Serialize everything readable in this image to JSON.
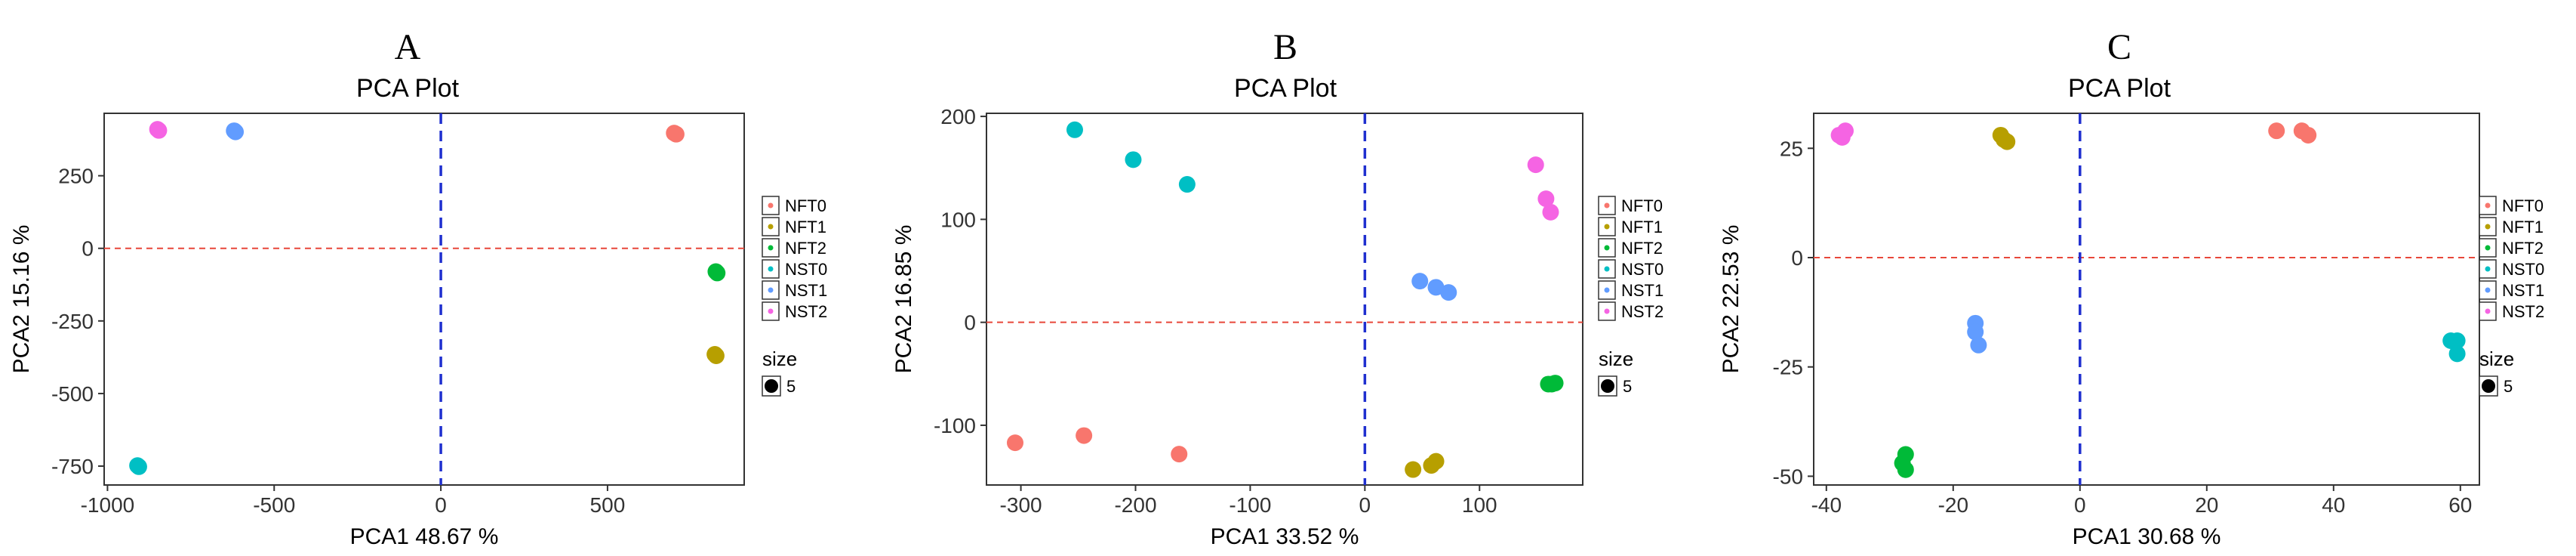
{
  "colors": {
    "NFT0": "#F8766D",
    "NFT1": "#B79F00",
    "NFT2": "#00BA38",
    "NST0": "#00BFC4",
    "NST1": "#619CFF",
    "NST2": "#F564E3",
    "hline": "#E8473A",
    "vline": "#1F2FCF"
  },
  "chart_data": [
    {
      "panel": "A",
      "type": "scatter",
      "title": "PCA Plot",
      "xlabel": "PCA1 48.67 %",
      "ylabel": "PCA2 15.16 %",
      "xlim": [
        -1010,
        910
      ],
      "ylim": [
        -815,
        465
      ],
      "xticks": [
        -1000,
        -500,
        0,
        500
      ],
      "xtick_labels": [
        "-1000",
        "-500",
        "0",
        "500"
      ],
      "yticks": [
        -750,
        -500,
        -250,
        0,
        250
      ],
      "ytick_labels": [
        "-750",
        "-500",
        "-250",
        "0",
        "250"
      ],
      "legend_labels": [
        "NFT0",
        "NFT1",
        "NFT2",
        "NST0",
        "NST1",
        "NST2"
      ],
      "size_title": "size",
      "size_value": "5",
      "series": [
        {
          "name": "NFT0",
          "points": [
            [
              700,
              397
            ],
            [
              706,
              393
            ]
          ]
        },
        {
          "name": "NFT1",
          "points": [
            [
              822,
              -365
            ],
            [
              826,
              -370
            ]
          ]
        },
        {
          "name": "NFT2",
          "points": [
            [
              825,
              -80
            ],
            [
              829,
              -85
            ]
          ]
        },
        {
          "name": "NST0",
          "points": [
            [
              -910,
              -748
            ],
            [
              -906,
              -752
            ]
          ]
        },
        {
          "name": "NST1",
          "points": [
            [
              -620,
              405
            ],
            [
              -616,
              401
            ]
          ]
        },
        {
          "name": "NST2",
          "points": [
            [
              -850,
              410
            ],
            [
              -846,
              406
            ]
          ]
        }
      ]
    },
    {
      "panel": "B",
      "type": "scatter",
      "title": "PCA Plot",
      "xlabel": "PCA1 33.52 %",
      "ylabel": "PCA2 16.85 %",
      "xlim": [
        -330,
        190
      ],
      "ylim": [
        -158,
        203
      ],
      "xticks": [
        -300,
        -200,
        -100,
        0,
        100
      ],
      "xtick_labels": [
        "-300",
        "-200",
        "-100",
        "0",
        "100"
      ],
      "yticks": [
        -100,
        0,
        100,
        200
      ],
      "ytick_labels": [
        "-100",
        "0",
        "100",
        "200"
      ],
      "legend_labels": [
        "NFT0",
        "NFT1",
        "NFT2",
        "NST0",
        "NST1",
        "NST2"
      ],
      "size_title": "size",
      "size_value": "5",
      "series": [
        {
          "name": "NFT0",
          "points": [
            [
              -305,
              -117
            ],
            [
              -245,
              -110
            ],
            [
              -162,
              -128
            ]
          ]
        },
        {
          "name": "NFT1",
          "points": [
            [
              42,
              -143
            ],
            [
              58,
              -139
            ],
            [
              62,
              -135
            ]
          ]
        },
        {
          "name": "NFT2",
          "points": [
            [
              160,
              -60
            ],
            [
              163,
              -60
            ],
            [
              166,
              -59
            ]
          ]
        },
        {
          "name": "NST0",
          "points": [
            [
              -253,
              187
            ],
            [
              -202,
              158
            ],
            [
              -155,
              134
            ]
          ]
        },
        {
          "name": "NST1",
          "points": [
            [
              48,
              40
            ],
            [
              62,
              34
            ],
            [
              73,
              29
            ]
          ]
        },
        {
          "name": "NST2",
          "points": [
            [
              149,
              153
            ],
            [
              158,
              120
            ],
            [
              162,
              107
            ]
          ]
        }
      ]
    },
    {
      "panel": "C",
      "type": "scatter",
      "title": "PCA Plot",
      "xlabel": "PCA1 30.68 %",
      "ylabel": "PCA2 22.53 %",
      "xlim": [
        -42,
        63
      ],
      "ylim": [
        -52,
        33
      ],
      "xticks": [
        -40,
        -20,
        0,
        20,
        40,
        60
      ],
      "xtick_labels": [
        "-40",
        "-20",
        "0",
        "20",
        "40",
        "60"
      ],
      "yticks": [
        -50,
        -25,
        0,
        25
      ],
      "ytick_labels": [
        "-50",
        "-25",
        "0",
        "25"
      ],
      "legend_labels": [
        "NFT0",
        "NFT1",
        "NFT2",
        "NST0",
        "NST1",
        "NST2"
      ],
      "size_title": "size",
      "size_value": "5",
      "series": [
        {
          "name": "NFT0",
          "points": [
            [
              31,
              29
            ],
            [
              35,
              29
            ],
            [
              36,
              28
            ]
          ]
        },
        {
          "name": "NFT1",
          "points": [
            [
              -12.5,
              28
            ],
            [
              -12,
              27
            ],
            [
              -11.5,
              26.5
            ]
          ]
        },
        {
          "name": "NFT2",
          "points": [
            [
              -28,
              -47
            ],
            [
              -27.5,
              -45
            ],
            [
              -27.5,
              -48.5
            ]
          ]
        },
        {
          "name": "NST0",
          "points": [
            [
              58.5,
              -19
            ],
            [
              59.5,
              -19
            ],
            [
              59.5,
              -22
            ]
          ]
        },
        {
          "name": "NST1",
          "points": [
            [
              -16.5,
              -15
            ],
            [
              -16.5,
              -17
            ],
            [
              -16,
              -20
            ]
          ]
        },
        {
          "name": "NST2",
          "points": [
            [
              -38,
              28
            ],
            [
              -37,
              29
            ],
            [
              -37.5,
              27.5
            ]
          ]
        }
      ]
    }
  ]
}
